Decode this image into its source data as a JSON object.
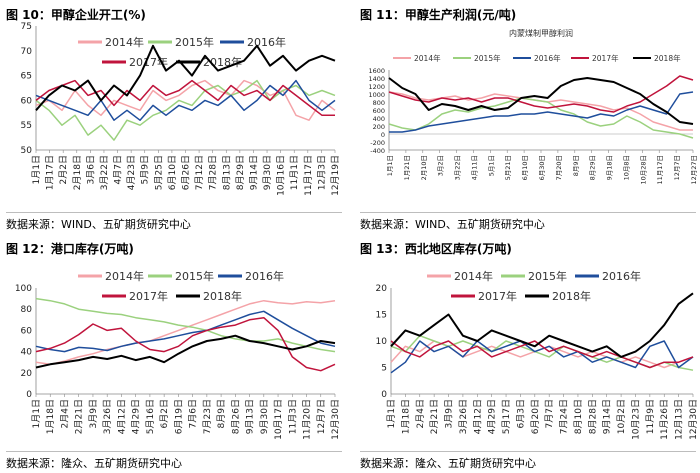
{
  "colors": {
    "2014": "#f4a3a8",
    "2015": "#9bd17e",
    "2016": "#1f4e9c",
    "2017": "#c0143c",
    "2018": "#000000"
  },
  "panels": [
    {
      "title": "图 10：甲醇企业开工(%)",
      "source": "数据来源：WIND、五矿期货研究中心"
    },
    {
      "title": "图 11：甲醇生产利润(元/吨)",
      "source": "数据来源：WIND、五矿期货研究中心"
    },
    {
      "title": "图 12：港口库存(万吨)",
      "source": "数据来源：隆众、五矿期货研究中心"
    },
    {
      "title": "图 13：西北地区库存(万吨)",
      "source": "数据来源：隆众、五矿期货研究中心"
    }
  ],
  "chart_data": [
    {
      "type": "line",
      "title": "图 10：甲醇企业开工(%)",
      "ylim": [
        50,
        75
      ],
      "yticks": [
        "50",
        "55",
        "60",
        "65",
        "70",
        "75"
      ],
      "ytick_values": [
        50,
        55,
        60,
        65,
        70,
        75
      ],
      "xticks": [
        "1月1日",
        "1月17日",
        "2月2日",
        "2月18日",
        "3月6日",
        "3月22日",
        "4月7日",
        "4月23日",
        "5月9日",
        "5月25日",
        "6月10日",
        "6月26日",
        "7月12日",
        "7月28日",
        "8月13日",
        "8月29日",
        "9月14日",
        "9月30日",
        "10月16日",
        "11月1日",
        "11月17日",
        "12月3日",
        "12月19日"
      ],
      "legend": [
        "2014年",
        "2015年",
        "2016年",
        "2017年",
        "2018年"
      ],
      "series": [
        {
          "name": "2014年",
          "values": [
            59,
            60,
            58,
            62,
            59,
            57,
            60,
            59,
            58,
            62,
            60,
            61,
            63,
            64,
            62,
            61,
            64,
            63,
            61,
            62,
            57,
            56,
            60,
            58
          ]
        },
        {
          "name": "2015年",
          "values": [
            60,
            58,
            55,
            57,
            53,
            55,
            52,
            56,
            55,
            57,
            58,
            60,
            59,
            62,
            63,
            61,
            62,
            64,
            60,
            62,
            63,
            61,
            62,
            61
          ]
        },
        {
          "name": "2016年",
          "values": [
            61,
            60,
            59,
            58,
            57,
            60,
            56,
            58,
            56,
            59,
            57,
            59,
            58,
            60,
            59,
            61,
            58,
            60,
            63,
            61,
            64,
            60,
            58,
            60
          ]
        },
        {
          "name": "2017年",
          "values": [
            60,
            62,
            63,
            64,
            61,
            62,
            59,
            62,
            60,
            63,
            61,
            62,
            64,
            62,
            60,
            63,
            61,
            62,
            60,
            63,
            61,
            59,
            57,
            57
          ]
        },
        {
          "name": "2018年",
          "values": [
            58,
            61,
            63,
            62,
            64,
            60,
            63,
            61,
            65,
            71,
            66,
            68,
            65,
            69,
            66,
            67,
            68,
            71,
            67,
            69,
            66,
            68,
            69,
            68
          ]
        }
      ]
    },
    {
      "type": "line",
      "title": "内蒙煤制甲醇利润",
      "ylim": [
        -400,
        1600
      ],
      "yticks": [
        "-400",
        "-200",
        "0",
        "200",
        "400",
        "600",
        "800",
        "1000",
        "1200",
        "1400",
        "1600"
      ],
      "ytick_values": [
        -400,
        -200,
        0,
        200,
        400,
        600,
        800,
        1000,
        1200,
        1400,
        1600
      ],
      "xticks": [
        "1月1日",
        "1月21日",
        "2月10日",
        "3月2日",
        "3月22日",
        "4月11日",
        "5月1日",
        "5月21日",
        "6月10日",
        "6月30日",
        "7月20日",
        "8月9日",
        "8月29日",
        "9月18日",
        "10月8日",
        "10月28日",
        "11月17日",
        "12月7日",
        "12月27日"
      ],
      "legend": [
        "2014年",
        "2015年",
        "2016年",
        "2017年",
        "2018年"
      ],
      "series": [
        {
          "name": "2014年",
          "values": [
            1050,
            1000,
            900,
            850,
            900,
            950,
            850,
            900,
            1000,
            950,
            900,
            850,
            800,
            850,
            800,
            750,
            700,
            600,
            650,
            500,
            300,
            200,
            100,
            100
          ]
        },
        {
          "name": "2015年",
          "values": [
            250,
            150,
            100,
            250,
            500,
            600,
            550,
            650,
            700,
            800,
            900,
            850,
            800,
            600,
            500,
            300,
            200,
            250,
            450,
            300,
            100,
            50,
            0,
            -100
          ]
        },
        {
          "name": "2016年",
          "values": [
            50,
            50,
            100,
            200,
            250,
            300,
            350,
            400,
            450,
            450,
            500,
            500,
            550,
            500,
            450,
            400,
            500,
            450,
            600,
            700,
            600,
            500,
            1000,
            1050
          ]
        },
        {
          "name": "2017年",
          "values": [
            1050,
            950,
            850,
            800,
            900,
            850,
            900,
            800,
            900,
            900,
            800,
            700,
            650,
            700,
            750,
            700,
            600,
            550,
            700,
            800,
            1000,
            1200,
            1450,
            1350
          ]
        },
        {
          "name": "2018年",
          "values": [
            1400,
            1150,
            1000,
            600,
            750,
            700,
            600,
            700,
            600,
            650,
            900,
            950,
            900,
            1200,
            1350,
            1400,
            1350,
            1300,
            1150,
            1000,
            750,
            550,
            300,
            250
          ]
        }
      ]
    },
    {
      "type": "line",
      "title": "图 12：港口库存(万吨)",
      "ylim": [
        0,
        100
      ],
      "yticks": [
        "0",
        "20",
        "40",
        "60",
        "80",
        "100"
      ],
      "ytick_values": [
        0,
        20,
        40,
        60,
        80,
        100
      ],
      "xticks": [
        "1月1日",
        "1月18日",
        "2月4日",
        "2月21日",
        "3月9日",
        "3月26日",
        "4月12日",
        "4月29日",
        "5月16日",
        "6月2日",
        "6月19日",
        "7月6日",
        "7月23日",
        "8月9日",
        "8月26日",
        "9月13日",
        "9月30日",
        "10月17日",
        "11月3日",
        "11月20日",
        "12月7日",
        "12月30日"
      ],
      "legend": [
        "2014年",
        "2015年",
        "2016年",
        "2017年",
        "2018年"
      ],
      "series": [
        {
          "name": "2014年",
          "values": [
            30,
            28,
            31,
            35,
            38,
            42,
            45,
            48,
            50,
            55,
            60,
            65,
            70,
            75,
            80,
            85,
            88,
            86,
            85,
            87,
            86,
            88
          ]
        },
        {
          "name": "2015年",
          "values": [
            90,
            88,
            85,
            80,
            78,
            76,
            75,
            72,
            70,
            68,
            65,
            63,
            60,
            55,
            52,
            50,
            50,
            52,
            48,
            45,
            42,
            40
          ]
        },
        {
          "name": "2016年",
          "values": [
            45,
            42,
            40,
            44,
            43,
            41,
            45,
            48,
            50,
            52,
            55,
            58,
            60,
            65,
            70,
            75,
            78,
            70,
            62,
            55,
            48,
            45
          ]
        },
        {
          "name": "2017年",
          "values": [
            40,
            43,
            48,
            56,
            66,
            60,
            62,
            50,
            42,
            40,
            45,
            55,
            60,
            63,
            65,
            70,
            72,
            60,
            35,
            25,
            22,
            28
          ]
        },
        {
          "name": "2018年",
          "values": [
            25,
            28,
            30,
            32,
            35,
            33,
            36,
            32,
            35,
            30,
            38,
            45,
            50,
            52,
            55,
            50,
            48,
            45,
            42,
            45,
            50,
            48
          ]
        }
      ]
    },
    {
      "type": "line",
      "title": "图 13：西北地区库存(万吨)",
      "ylim": [
        0,
        20
      ],
      "yticks": [
        "0",
        "5",
        "10",
        "15",
        "20"
      ],
      "ytick_values": [
        0,
        5,
        10,
        15,
        20
      ],
      "xticks": [
        "1月1日",
        "1月18日",
        "2月4日",
        "2月21日",
        "3月9日",
        "3月26日",
        "4月12日",
        "4月29日",
        "5月17日",
        "6月3日",
        "6月20日",
        "7月7日",
        "7月24日",
        "8月10日",
        "8月28日",
        "9月14日",
        "10月2日",
        "10月23日",
        "11月9日",
        "11月26日",
        "12月13日",
        "12月30日"
      ],
      "legend": [
        "2014年",
        "2015年",
        "2016年",
        "2017年",
        "2018年"
      ],
      "series": [
        {
          "name": "2014年",
          "values": [
            6,
            9,
            8,
            10,
            9,
            7,
            8,
            9,
            8,
            7,
            8,
            9,
            8,
            7,
            8,
            7,
            6,
            7,
            6,
            5,
            6,
            7
          ]
        },
        {
          "name": "2015年",
          "values": [
            9,
            8,
            11,
            10,
            9,
            10,
            9,
            8,
            10,
            9,
            8,
            7,
            9,
            8,
            7,
            6,
            7,
            6,
            5,
            6,
            5,
            4.5
          ]
        },
        {
          "name": "2016年",
          "values": [
            4,
            6,
            10,
            8,
            9,
            7,
            10,
            8,
            9,
            10,
            8,
            9,
            7,
            8,
            6,
            7,
            6,
            5,
            9,
            10,
            5,
            7
          ]
        },
        {
          "name": "2017年",
          "values": [
            10,
            8,
            7,
            9,
            10,
            8,
            9,
            7,
            8,
            9,
            10,
            8,
            9,
            8,
            7,
            8,
            7,
            6,
            5,
            6,
            6,
            7
          ]
        },
        {
          "name": "2018年",
          "values": [
            9,
            12,
            11,
            13,
            15,
            11,
            10,
            12,
            11,
            10,
            9,
            11,
            10,
            9,
            8,
            9,
            7,
            8,
            10,
            13,
            17,
            19
          ]
        }
      ]
    }
  ]
}
